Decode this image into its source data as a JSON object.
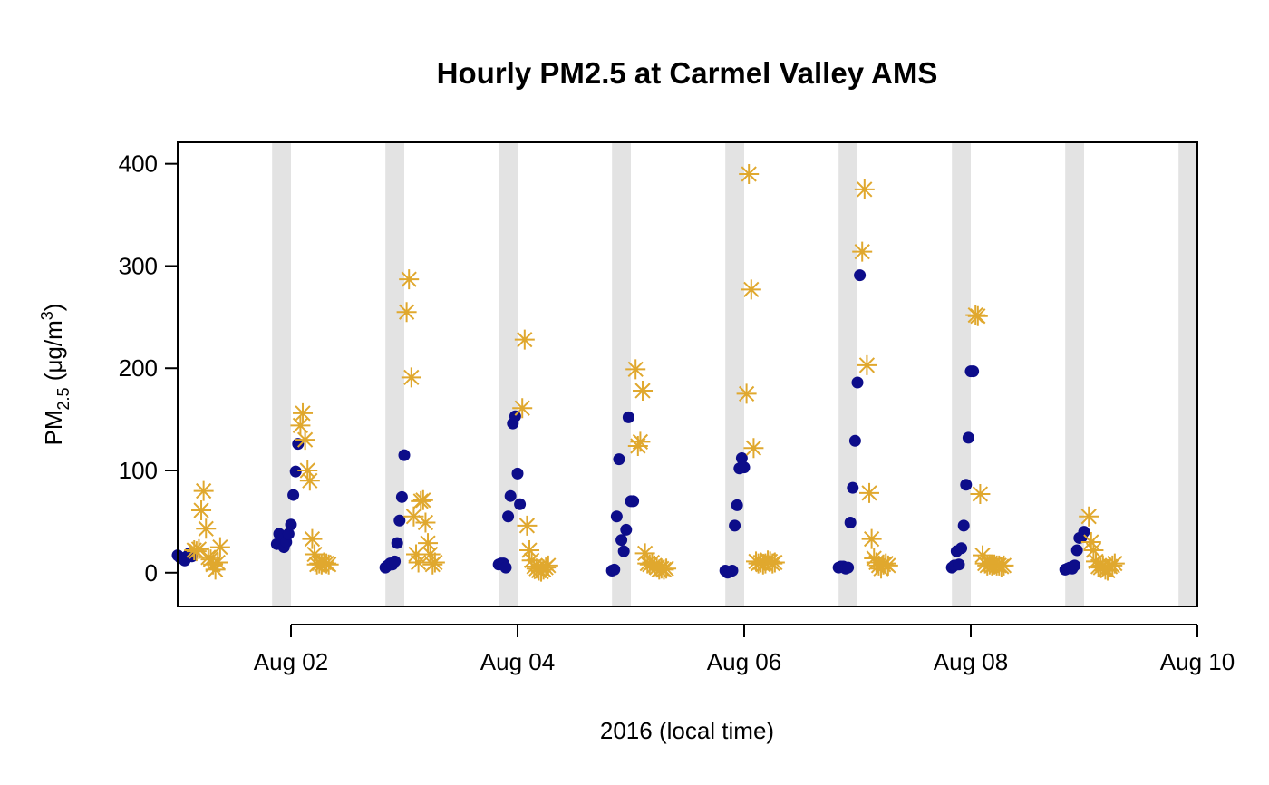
{
  "chart_data": {
    "type": "scatter",
    "title": "Hourly PM2.5 at Carmel Valley AMS",
    "xlabel": "2016  (local time)",
    "ylabel": "PM2.5 (μg/m3)",
    "ylabel_parts": {
      "base": "PM",
      "sub": "2.5",
      "mid": " (μg/m",
      "sup": "3",
      "end": ")"
    },
    "xlim": [
      "2016-08-01T00:00",
      "2016-08-10T00:00"
    ],
    "ylim": [
      -33,
      421
    ],
    "grid": false,
    "shading": "night-time bands 20:00–24:00 each day",
    "shade_color": "#e3e3e3",
    "y_ticks": [
      0,
      100,
      200,
      300,
      400
    ],
    "x_ticks": [
      {
        "date": "2016-08-02",
        "label": "Aug 02"
      },
      {
        "date": "2016-08-04",
        "label": "Aug 04"
      },
      {
        "date": "2016-08-06",
        "label": "Aug 06"
      },
      {
        "date": "2016-08-08",
        "label": "Aug 08"
      },
      {
        "date": "2016-08-10",
        "label": "Aug 10"
      }
    ],
    "series": [
      {
        "marker": "dot",
        "color": "#0d0d8a",
        "points": [
          [
            "2016-08-01T00:00",
            17
          ],
          [
            "2016-08-01T00:30",
            15
          ],
          [
            "2016-08-01T01:00",
            14
          ],
          [
            "2016-08-01T01:30",
            12
          ],
          [
            "2016-08-01T02:00",
            16
          ],
          [
            "2016-08-01T02:30",
            19
          ],
          [
            "2016-08-01T03:00",
            16
          ],
          [
            "2016-08-01T21:00",
            28
          ],
          [
            "2016-08-01T21:30",
            38
          ],
          [
            "2016-08-01T22:00",
            28
          ],
          [
            "2016-08-01T22:30",
            25
          ],
          [
            "2016-08-01T23:00",
            30
          ],
          [
            "2016-08-01T23:30",
            38
          ],
          [
            "2016-08-02T00:00",
            47
          ],
          [
            "2016-08-02T00:30",
            76
          ],
          [
            "2016-08-02T01:00",
            99
          ],
          [
            "2016-08-02T01:30",
            126
          ],
          [
            "2016-08-02T20:00",
            5
          ],
          [
            "2016-08-02T20:30",
            7
          ],
          [
            "2016-08-02T21:00",
            9
          ],
          [
            "2016-08-02T21:30",
            8
          ],
          [
            "2016-08-02T22:00",
            11
          ],
          [
            "2016-08-02T22:30",
            29
          ],
          [
            "2016-08-02T23:00",
            51
          ],
          [
            "2016-08-02T23:30",
            74
          ],
          [
            "2016-08-03T00:00",
            115
          ],
          [
            "2016-08-03T20:00",
            8
          ],
          [
            "2016-08-03T20:30",
            9
          ],
          [
            "2016-08-03T21:00",
            9
          ],
          [
            "2016-08-03T21:30",
            5
          ],
          [
            "2016-08-03T22:00",
            55
          ],
          [
            "2016-08-03T22:30",
            75
          ],
          [
            "2016-08-03T23:00",
            146
          ],
          [
            "2016-08-03T23:30",
            153
          ],
          [
            "2016-08-04T00:00",
            97
          ],
          [
            "2016-08-04T00:30",
            67
          ],
          [
            "2016-08-04T20:00",
            2
          ],
          [
            "2016-08-04T20:30",
            3
          ],
          [
            "2016-08-04T21:00",
            55
          ],
          [
            "2016-08-04T21:30",
            111
          ],
          [
            "2016-08-04T22:00",
            32
          ],
          [
            "2016-08-04T22:30",
            21
          ],
          [
            "2016-08-04T23:00",
            42
          ],
          [
            "2016-08-04T23:30",
            152
          ],
          [
            "2016-08-05T00:00",
            70
          ],
          [
            "2016-08-05T00:30",
            70
          ],
          [
            "2016-08-05T20:00",
            2
          ],
          [
            "2016-08-05T20:30",
            0
          ],
          [
            "2016-08-05T21:00",
            1
          ],
          [
            "2016-08-05T21:30",
            2
          ],
          [
            "2016-08-05T22:00",
            46
          ],
          [
            "2016-08-05T22:30",
            66
          ],
          [
            "2016-08-05T23:00",
            102
          ],
          [
            "2016-08-05T23:30",
            112
          ],
          [
            "2016-08-06T00:00",
            103
          ],
          [
            "2016-08-06T20:00",
            5
          ],
          [
            "2016-08-06T20:30",
            6
          ],
          [
            "2016-08-06T21:00",
            6
          ],
          [
            "2016-08-06T21:30",
            4
          ],
          [
            "2016-08-06T22:00",
            5
          ],
          [
            "2016-08-06T22:30",
            49
          ],
          [
            "2016-08-06T23:00",
            83
          ],
          [
            "2016-08-06T23:30",
            129
          ],
          [
            "2016-08-07T00:00",
            186
          ],
          [
            "2016-08-07T00:30",
            291
          ],
          [
            "2016-08-07T20:00",
            5
          ],
          [
            "2016-08-07T20:30",
            7
          ],
          [
            "2016-08-07T21:00",
            21
          ],
          [
            "2016-08-07T21:30",
            8
          ],
          [
            "2016-08-07T22:00",
            24
          ],
          [
            "2016-08-07T22:30",
            46
          ],
          [
            "2016-08-07T23:00",
            86
          ],
          [
            "2016-08-07T23:30",
            132
          ],
          [
            "2016-08-08T00:00",
            197
          ],
          [
            "2016-08-08T00:30",
            197
          ],
          [
            "2016-08-08T20:00",
            3
          ],
          [
            "2016-08-08T20:30",
            4
          ],
          [
            "2016-08-08T21:00",
            5
          ],
          [
            "2016-08-08T21:30",
            4
          ],
          [
            "2016-08-08T22:00",
            7
          ],
          [
            "2016-08-08T22:30",
            22
          ],
          [
            "2016-08-08T23:00",
            34
          ],
          [
            "2016-08-08T23:30",
            35
          ],
          [
            "2016-08-09T00:00",
            40
          ]
        ]
      },
      {
        "marker": "asterisk",
        "color": "#e0a82e",
        "points": [
          [
            "2016-08-01T03:30",
            22
          ],
          [
            "2016-08-01T04:00",
            21
          ],
          [
            "2016-08-01T04:30",
            23
          ],
          [
            "2016-08-01T05:00",
            61
          ],
          [
            "2016-08-01T05:30",
            80
          ],
          [
            "2016-08-01T06:00",
            43
          ],
          [
            "2016-08-01T06:30",
            15
          ],
          [
            "2016-08-01T07:00",
            13
          ],
          [
            "2016-08-01T07:30",
            8
          ],
          [
            "2016-08-01T08:00",
            3
          ],
          [
            "2016-08-01T08:30",
            10
          ],
          [
            "2016-08-01T09:00",
            25
          ],
          [
            "2016-08-02T02:00",
            144
          ],
          [
            "2016-08-02T02:30",
            156
          ],
          [
            "2016-08-02T03:00",
            130
          ],
          [
            "2016-08-02T03:30",
            100
          ],
          [
            "2016-08-02T04:00",
            90
          ],
          [
            "2016-08-02T04:30",
            33
          ],
          [
            "2016-08-02T05:00",
            18
          ],
          [
            "2016-08-02T05:30",
            8
          ],
          [
            "2016-08-02T06:00",
            9
          ],
          [
            "2016-08-02T06:30",
            8
          ],
          [
            "2016-08-02T07:00",
            10
          ],
          [
            "2016-08-02T07:30",
            9
          ],
          [
            "2016-08-02T08:00",
            8
          ],
          [
            "2016-08-03T00:30",
            255
          ],
          [
            "2016-08-03T01:00",
            287
          ],
          [
            "2016-08-03T01:30",
            191
          ],
          [
            "2016-08-03T02:00",
            55
          ],
          [
            "2016-08-03T02:30",
            18
          ],
          [
            "2016-08-03T03:00",
            10
          ],
          [
            "2016-08-03T03:30",
            70
          ],
          [
            "2016-08-03T04:00",
            71
          ],
          [
            "2016-08-03T04:30",
            49
          ],
          [
            "2016-08-03T05:00",
            29
          ],
          [
            "2016-08-03T05:30",
            18
          ],
          [
            "2016-08-03T06:00",
            8
          ],
          [
            "2016-08-03T06:30",
            10
          ],
          [
            "2016-08-04T01:00",
            161
          ],
          [
            "2016-08-04T01:30",
            228
          ],
          [
            "2016-08-04T02:00",
            46
          ],
          [
            "2016-08-04T02:30",
            22
          ],
          [
            "2016-08-04T03:00",
            12
          ],
          [
            "2016-08-04T03:30",
            6
          ],
          [
            "2016-08-04T04:00",
            4
          ],
          [
            "2016-08-04T04:30",
            2
          ],
          [
            "2016-08-04T05:00",
            1
          ],
          [
            "2016-08-04T05:30",
            3
          ],
          [
            "2016-08-04T06:00",
            5
          ],
          [
            "2016-08-04T06:30",
            7
          ],
          [
            "2016-08-05T01:00",
            199
          ],
          [
            "2016-08-05T01:30",
            124
          ],
          [
            "2016-08-05T02:00",
            128
          ],
          [
            "2016-08-05T02:30",
            178
          ],
          [
            "2016-08-05T03:00",
            19
          ],
          [
            "2016-08-05T03:30",
            9
          ],
          [
            "2016-08-05T04:00",
            8
          ],
          [
            "2016-08-05T04:30",
            10
          ],
          [
            "2016-08-05T05:00",
            7
          ],
          [
            "2016-08-05T05:30",
            5
          ],
          [
            "2016-08-05T06:00",
            3
          ],
          [
            "2016-08-05T06:30",
            4
          ],
          [
            "2016-08-05T07:00",
            3
          ],
          [
            "2016-08-05T07:30",
            4
          ],
          [
            "2016-08-06T00:30",
            175
          ],
          [
            "2016-08-06T01:00",
            390
          ],
          [
            "2016-08-06T01:30",
            277
          ],
          [
            "2016-08-06T02:00",
            122
          ],
          [
            "2016-08-06T02:30",
            11
          ],
          [
            "2016-08-06T03:00",
            9
          ],
          [
            "2016-08-06T03:30",
            10
          ],
          [
            "2016-08-06T04:00",
            8
          ],
          [
            "2016-08-06T04:30",
            9
          ],
          [
            "2016-08-06T05:00",
            12
          ],
          [
            "2016-08-06T05:30",
            11
          ],
          [
            "2016-08-06T06:00",
            9
          ],
          [
            "2016-08-06T06:30",
            10
          ],
          [
            "2016-08-07T01:00",
            314
          ],
          [
            "2016-08-07T01:30",
            375
          ],
          [
            "2016-08-07T02:00",
            203
          ],
          [
            "2016-08-07T02:30",
            78
          ],
          [
            "2016-08-07T03:00",
            33
          ],
          [
            "2016-08-07T03:30",
            14
          ],
          [
            "2016-08-07T04:00",
            10
          ],
          [
            "2016-08-07T04:30",
            7
          ],
          [
            "2016-08-07T05:00",
            4
          ],
          [
            "2016-08-07T05:30",
            8
          ],
          [
            "2016-08-07T06:00",
            9
          ],
          [
            "2016-08-07T06:30",
            7
          ],
          [
            "2016-08-08T01:00",
            252
          ],
          [
            "2016-08-08T01:30",
            251
          ],
          [
            "2016-08-08T02:00",
            77
          ],
          [
            "2016-08-08T02:30",
            17
          ],
          [
            "2016-08-08T03:00",
            9
          ],
          [
            "2016-08-08T03:30",
            7
          ],
          [
            "2016-08-08T04:00",
            8
          ],
          [
            "2016-08-08T04:30",
            7
          ],
          [
            "2016-08-08T05:00",
            8
          ],
          [
            "2016-08-08T05:30",
            7
          ],
          [
            "2016-08-08T06:00",
            7
          ],
          [
            "2016-08-08T06:30",
            6
          ],
          [
            "2016-08-08T07:00",
            7
          ],
          [
            "2016-08-09T01:00",
            55
          ],
          [
            "2016-08-09T01:30",
            30
          ],
          [
            "2016-08-09T02:00",
            22
          ],
          [
            "2016-08-09T02:30",
            11
          ],
          [
            "2016-08-09T03:00",
            6
          ],
          [
            "2016-08-09T03:30",
            5
          ],
          [
            "2016-08-09T04:00",
            7
          ],
          [
            "2016-08-09T04:30",
            3
          ],
          [
            "2016-08-09T05:00",
            2
          ],
          [
            "2016-08-09T05:30",
            6
          ],
          [
            "2016-08-09T06:00",
            7
          ],
          [
            "2016-08-09T06:30",
            9
          ]
        ]
      }
    ]
  }
}
